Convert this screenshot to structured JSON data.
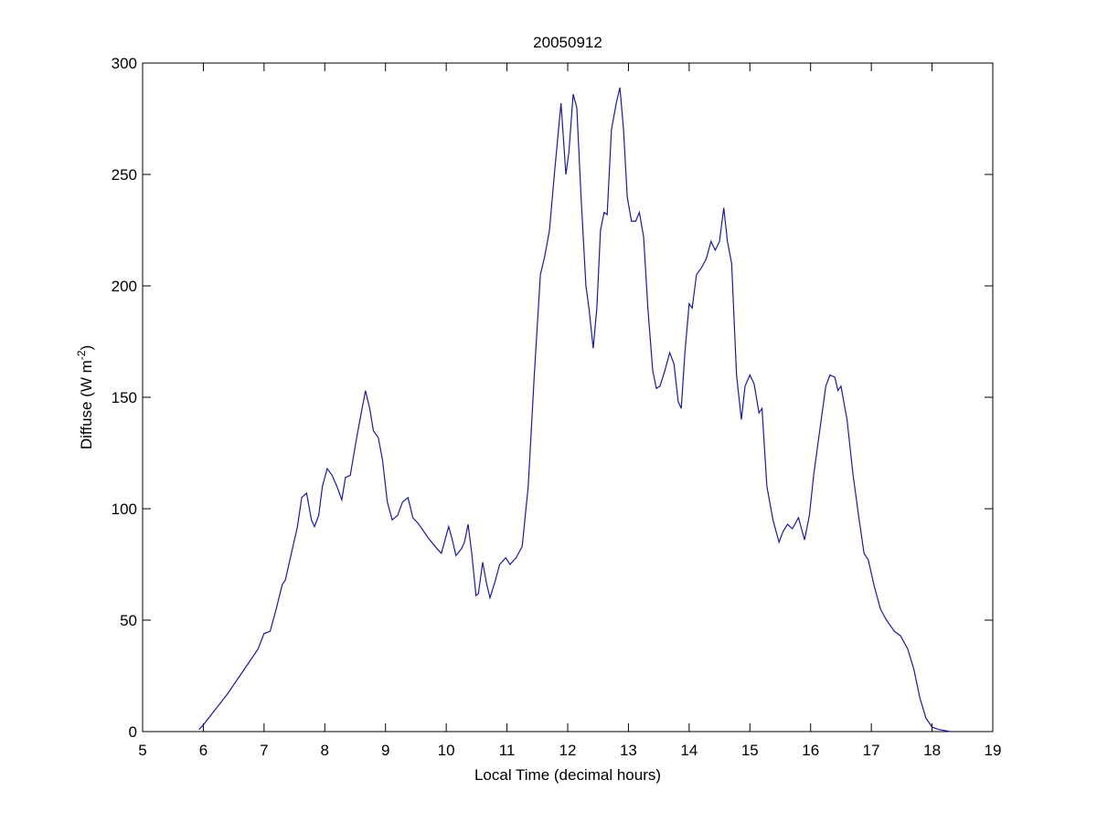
{
  "chart_data": {
    "type": "line",
    "title": "20050912",
    "xlabel": "Local Time (decimal hours)",
    "ylabel": [
      "Diffuse (W m",
      "-2",
      ")"
    ],
    "xlim": [
      5,
      19
    ],
    "xticks": [
      5,
      6,
      7,
      8,
      9,
      10,
      11,
      12,
      13,
      14,
      15,
      16,
      17,
      18,
      19
    ],
    "ylim": [
      0,
      300
    ],
    "yticks": [
      0,
      50,
      100,
      150,
      200,
      250,
      300
    ],
    "grid": false,
    "box": true,
    "series": [
      {
        "color": "#1a1aa6",
        "x": [
          5.93,
          6.0,
          6.2,
          6.4,
          6.6,
          6.8,
          6.9,
          7.0,
          7.1,
          7.2,
          7.3,
          7.35,
          7.45,
          7.55,
          7.62,
          7.7,
          7.78,
          7.83,
          7.9,
          7.96,
          8.04,
          8.12,
          8.2,
          8.28,
          8.34,
          8.42,
          8.5,
          8.58,
          8.67,
          8.74,
          8.8,
          8.88,
          8.95,
          9.03,
          9.11,
          9.2,
          9.28,
          9.37,
          9.45,
          9.55,
          9.7,
          9.85,
          9.92,
          10.04,
          10.1,
          10.16,
          10.25,
          10.3,
          10.36,
          10.42,
          10.49,
          10.53,
          10.6,
          10.66,
          10.72,
          10.8,
          10.88,
          10.98,
          11.05,
          11.15,
          11.25,
          11.35,
          11.45,
          11.55,
          11.62,
          11.7,
          11.78,
          11.89,
          11.97,
          12.02,
          12.09,
          12.15,
          12.22,
          12.3,
          12.35,
          12.42,
          12.48,
          12.54,
          12.6,
          12.65,
          12.72,
          12.8,
          12.86,
          12.92,
          12.98,
          13.05,
          13.12,
          13.18,
          13.25,
          13.32,
          13.4,
          13.46,
          13.52,
          13.6,
          13.68,
          13.75,
          13.82,
          13.87,
          13.93,
          14.0,
          14.05,
          14.12,
          14.2,
          14.28,
          14.36,
          14.43,
          14.5,
          14.57,
          14.63,
          14.7,
          14.78,
          14.86,
          14.92,
          15.0,
          15.07,
          15.15,
          15.2,
          15.28,
          15.38,
          15.48,
          15.55,
          15.62,
          15.7,
          15.8,
          15.9,
          15.98,
          16.05,
          16.15,
          16.25,
          16.32,
          16.4,
          16.45,
          16.5,
          16.6,
          16.7,
          16.8,
          16.88,
          16.95,
          17.05,
          17.15,
          17.25,
          17.38,
          17.48,
          17.6,
          17.7,
          17.8,
          17.9,
          18.0,
          18.1,
          18.3
        ],
        "values": [
          1,
          3,
          10,
          17,
          25,
          33,
          37,
          44,
          45,
          55,
          66,
          68,
          80,
          92,
          105,
          107,
          95,
          92,
          97,
          110,
          118,
          115,
          110,
          104,
          114,
          115,
          128,
          140,
          153,
          145,
          135,
          132,
          122,
          103,
          95,
          97,
          103,
          105,
          96,
          93,
          87,
          82,
          80,
          92,
          86,
          79,
          82,
          85,
          93,
          80,
          61,
          62,
          76,
          67,
          60,
          67,
          75,
          78,
          75,
          78,
          83,
          110,
          160,
          205,
          213,
          225,
          250,
          282,
          250,
          260,
          286,
          280,
          240,
          200,
          190,
          172,
          190,
          225,
          233,
          232,
          270,
          282,
          289,
          270,
          240,
          229,
          229,
          233,
          222,
          190,
          162,
          154,
          155,
          162,
          170,
          165,
          148,
          145,
          170,
          192,
          190,
          205,
          208,
          212,
          220,
          216,
          220,
          235,
          220,
          210,
          160,
          140,
          155,
          160,
          156,
          143,
          145,
          110,
          95,
          85,
          90,
          93,
          91,
          96,
          86,
          97,
          115,
          135,
          155,
          160,
          159,
          153,
          155,
          140,
          115,
          95,
          80,
          77,
          65,
          55,
          50,
          45,
          43,
          37,
          28,
          15,
          6,
          2,
          1,
          0
        ]
      }
    ]
  }
}
